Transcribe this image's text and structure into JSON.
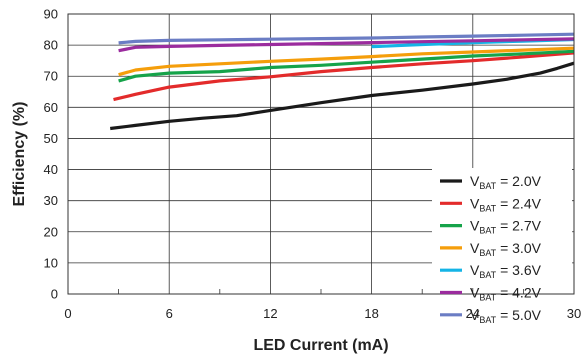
{
  "chart_data": {
    "type": "line",
    "xlabel": "LED Current (mA)",
    "ylabel": "Efficiency (%)",
    "xlim": [
      0,
      30
    ],
    "ylim": [
      0,
      90
    ],
    "xticks": [
      0,
      6,
      12,
      18,
      24,
      30
    ],
    "yticks": [
      0,
      10,
      20,
      30,
      40,
      50,
      60,
      70,
      80,
      90
    ],
    "grid": true,
    "legend_position": "bottom-right",
    "series": [
      {
        "name": "V_BAT = 2.0V",
        "label_main": "V",
        "label_sub": "BAT",
        "label_rest": " = 2.0V",
        "color": "#1a1a1a",
        "x": [
          2.5,
          4,
          6,
          8,
          10,
          12,
          15,
          18,
          21,
          24,
          26,
          28,
          29,
          30
        ],
        "y": [
          53.2,
          54.2,
          55.5,
          56.5,
          57.3,
          59,
          61.5,
          63.8,
          65.5,
          67.5,
          69,
          71,
          72.5,
          74.2
        ]
      },
      {
        "name": "V_BAT = 2.4V",
        "label_main": "V",
        "label_sub": "BAT",
        "label_rest": " = 2.4V",
        "color": "#e32b2b",
        "x": [
          2.7,
          4,
          6,
          9,
          12,
          15,
          18,
          21,
          24,
          27,
          30
        ],
        "y": [
          62.5,
          64.2,
          66.5,
          68.5,
          69.8,
          71.5,
          72.8,
          74,
          75,
          76.2,
          77.5
        ]
      },
      {
        "name": "V_BAT = 2.7V",
        "label_main": "V",
        "label_sub": "BAT",
        "label_rest": " = 2.7V",
        "color": "#16a34a",
        "x": [
          3,
          4,
          6,
          9,
          12,
          15,
          18,
          21,
          24,
          27,
          30
        ],
        "y": [
          68.5,
          70,
          71,
          71.5,
          72.8,
          73.5,
          74.5,
          75.5,
          76.5,
          77.2,
          78
        ]
      },
      {
        "name": "V_BAT = 3.0V",
        "label_main": "V",
        "label_sub": "BAT",
        "label_rest": " = 3.0V",
        "color": "#f59e0b",
        "x": [
          3,
          4,
          6,
          9,
          12,
          15,
          18,
          21,
          24,
          27,
          30
        ],
        "y": [
          70.5,
          72,
          73.2,
          74,
          74.8,
          75.5,
          76.3,
          77.2,
          77.8,
          78.4,
          79
        ]
      },
      {
        "name": "V_BAT = 3.6V",
        "label_main": "V",
        "label_sub": "BAT",
        "label_rest": " = 3.6V",
        "color": "#14b4e6",
        "x": [
          18,
          21,
          24,
          27,
          30
        ],
        "y": [
          79.5,
          80.2,
          80.8,
          81.3,
          81.8
        ]
      },
      {
        "name": "V_BAT = 4.2V",
        "label_main": "V",
        "label_sub": "BAT",
        "label_rest": " = 4.2V",
        "color": "#9b2c9e",
        "x": [
          3,
          4,
          6,
          9,
          12,
          15,
          18,
          21,
          24,
          27,
          30
        ],
        "y": [
          78.2,
          79.3,
          79.6,
          79.9,
          80.2,
          80.5,
          80.8,
          81.1,
          81.4,
          81.7,
          82
        ]
      },
      {
        "name": "V_BAT = 5.0V",
        "label_main": "V",
        "label_sub": "BAT",
        "label_rest": " = 5.0V",
        "color": "#6b7dc4",
        "x": [
          3,
          4,
          6,
          9,
          12,
          15,
          18,
          21,
          24,
          27,
          30
        ],
        "y": [
          80.7,
          81.2,
          81.5,
          81.7,
          81.9,
          82.1,
          82.3,
          82.6,
          82.9,
          83.2,
          83.5
        ]
      }
    ]
  }
}
